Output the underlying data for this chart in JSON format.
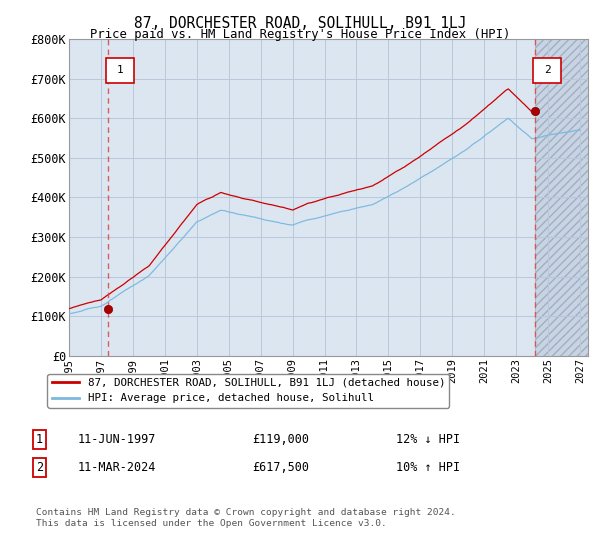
{
  "title": "87, DORCHESTER ROAD, SOLIHULL, B91 1LJ",
  "subtitle": "Price paid vs. HM Land Registry's House Price Index (HPI)",
  "ylim": [
    0,
    800000
  ],
  "yticks": [
    0,
    100000,
    200000,
    300000,
    400000,
    500000,
    600000,
    700000,
    800000
  ],
  "ytick_labels": [
    "£0",
    "£100K",
    "£200K",
    "£300K",
    "£400K",
    "£500K",
    "£600K",
    "£700K",
    "£800K"
  ],
  "xlim": [
    1995,
    2027.5
  ],
  "sale1_date": 1997.44,
  "sale1_price": 119000,
  "sale2_date": 2024.19,
  "sale2_price": 617500,
  "legend_line1": "87, DORCHESTER ROAD, SOLIHULL, B91 1LJ (detached house)",
  "legend_line2": "HPI: Average price, detached house, Solihull",
  "table_row1": [
    "1",
    "11-JUN-1997",
    "£119,000",
    "12% ↓ HPI"
  ],
  "table_row2": [
    "2",
    "11-MAR-2024",
    "£617,500",
    "10% ↑ HPI"
  ],
  "copyright": "Contains HM Land Registry data © Crown copyright and database right 2024.\nThis data is licensed under the Open Government Licence v3.0.",
  "hpi_color": "#7ab8e0",
  "price_color": "#cc0000",
  "bg_color": "#dce6f0",
  "grid_color": "#b8c8dc",
  "future_color": "#c8d4e4"
}
